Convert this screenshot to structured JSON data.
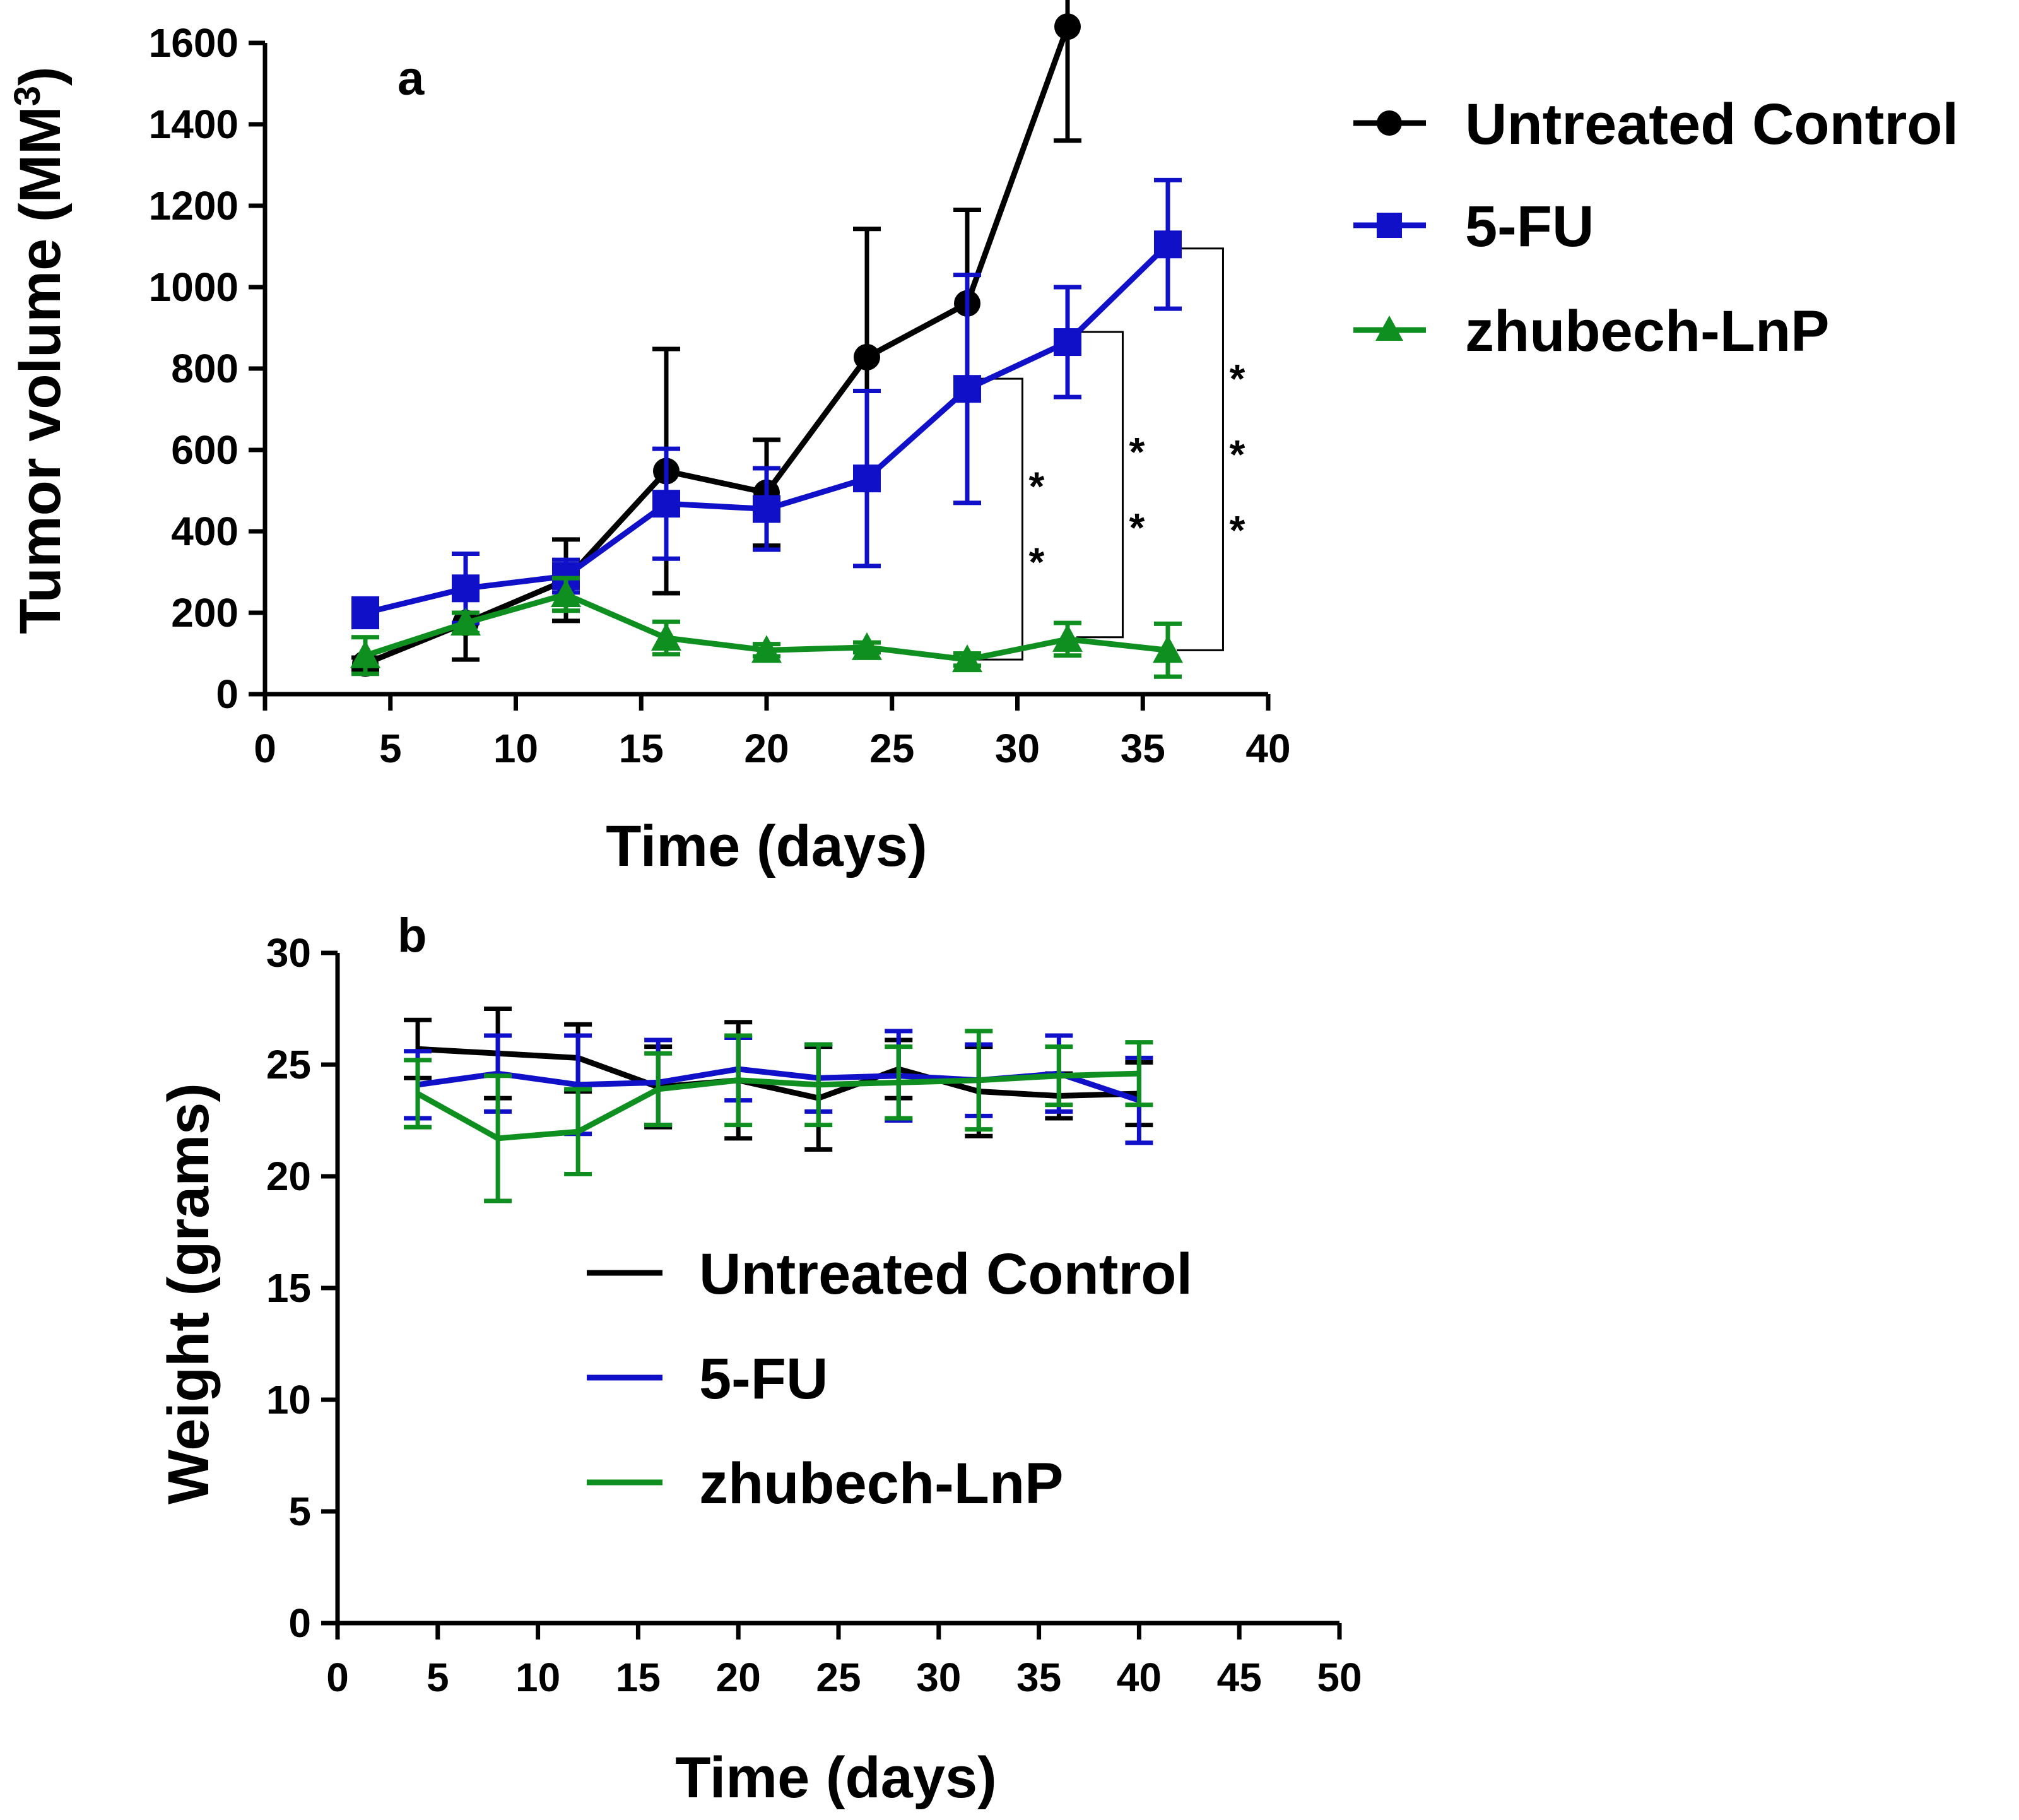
{
  "colors": {
    "untreated": "#000000",
    "fu": "#1010c8",
    "lnp": "#0f8f1f",
    "bracket": "#000000"
  },
  "chart_data": [
    {
      "type": "line",
      "panel": "a",
      "xlabel": "Time (days)",
      "ylabel": "Tumor volume (MM",
      "ylabel_sup": "3",
      "ylabel_close": ")",
      "xlim": [
        0,
        40
      ],
      "ylim": [
        0,
        1600
      ],
      "xticks": [
        0,
        5,
        10,
        15,
        20,
        25,
        30,
        35,
        40
      ],
      "yticks": [
        0,
        200,
        400,
        600,
        800,
        1000,
        1200,
        1400,
        1600
      ],
      "legend_position": "right",
      "series": [
        {
          "name": "Untreated Control",
          "color_key": "untreated",
          "marker": "circle",
          "x": [
            4,
            8,
            12,
            16,
            20,
            24,
            28,
            32
          ],
          "y": [
            75,
            175,
            280,
            548,
            495,
            828,
            960,
            1640
          ],
          "err": [
            15,
            90,
            100,
            300,
            130,
            315,
            230,
            280
          ]
        },
        {
          "name": "5-FU",
          "color_key": "fu",
          "marker": "square",
          "x": [
            4,
            8,
            12,
            16,
            20,
            24,
            28,
            32,
            36
          ],
          "y": [
            200,
            260,
            290,
            468,
            455,
            530,
            750,
            865,
            1105
          ],
          "err": [
            35,
            85,
            40,
            135,
            100,
            215,
            280,
            135,
            158
          ]
        },
        {
          "name": "zhubech-LnP",
          "color_key": "lnp",
          "marker": "triangle",
          "x": [
            4,
            8,
            12,
            16,
            20,
            24,
            28,
            32,
            36
          ],
          "y": [
            95,
            175,
            245,
            138,
            108,
            115,
            85,
            135,
            108
          ],
          "err": [
            45,
            25,
            40,
            40,
            15,
            12,
            15,
            40,
            65
          ]
        }
      ],
      "significance": [
        {
          "x": 28,
          "y_top": 775,
          "y_bottom": 85,
          "label": "**"
        },
        {
          "x": 32,
          "y_top": 890,
          "y_bottom": 140,
          "label": "**"
        },
        {
          "x": 36,
          "y_top": 1095,
          "y_bottom": 108,
          "label": "***"
        }
      ]
    },
    {
      "type": "line",
      "panel": "b",
      "xlabel": "Time (days)",
      "ylabel": "Weight (grams)",
      "xlim": [
        0,
        50
      ],
      "ylim": [
        0,
        30
      ],
      "xticks": [
        0,
        5,
        10,
        15,
        20,
        25,
        30,
        35,
        40,
        45,
        50
      ],
      "yticks": [
        0,
        5,
        10,
        15,
        20,
        25,
        30
      ],
      "legend_position": "center",
      "series": [
        {
          "name": "Untreated Control",
          "color_key": "untreated",
          "x": [
            4,
            8,
            12,
            16,
            20,
            24,
            28,
            32,
            36,
            40
          ],
          "y": [
            25.7,
            25.5,
            25.3,
            24.0,
            24.3,
            23.5,
            24.8,
            23.8,
            23.6,
            23.7
          ],
          "err": [
            1.3,
            2.0,
            1.5,
            1.8,
            2.6,
            2.3,
            1.3,
            2.0,
            1.0,
            1.4
          ]
        },
        {
          "name": "5-FU",
          "color_key": "fu",
          "x": [
            4,
            8,
            12,
            16,
            20,
            24,
            28,
            32,
            36,
            40
          ],
          "y": [
            24.1,
            24.6,
            24.1,
            24.2,
            24.8,
            24.4,
            24.5,
            24.3,
            24.6,
            23.4
          ],
          "err": [
            1.5,
            1.7,
            2.2,
            1.9,
            1.4,
            1.5,
            2.0,
            1.6,
            1.7,
            1.9
          ]
        },
        {
          "name": "zhubech-LnP",
          "color_key": "lnp",
          "x": [
            4,
            8,
            12,
            16,
            20,
            24,
            28,
            32,
            36,
            40
          ],
          "y": [
            23.7,
            21.7,
            22.0,
            23.9,
            24.3,
            24.1,
            24.2,
            24.3,
            24.5,
            24.6
          ],
          "err": [
            1.5,
            2.8,
            1.9,
            1.6,
            2.0,
            1.8,
            1.6,
            2.2,
            1.3,
            1.4
          ]
        }
      ]
    }
  ]
}
